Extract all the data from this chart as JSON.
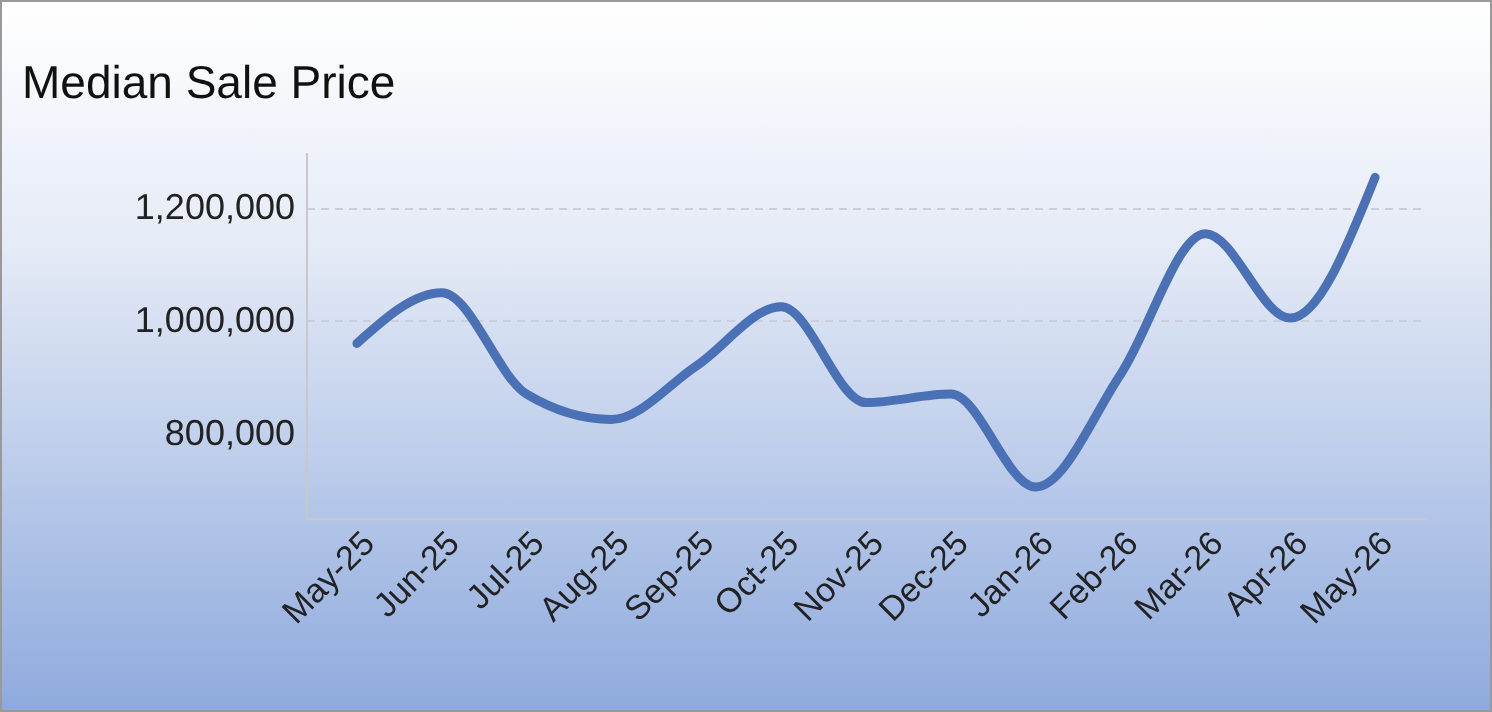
{
  "chart_data": {
    "type": "line",
    "title": "Median Sale Price",
    "categories": [
      "May-25",
      "Jun-25",
      "Jul-25",
      "Aug-25",
      "Sep-25",
      "Oct-25",
      "Nov-25",
      "Dec-25",
      "Jan-26",
      "Feb-26",
      "Mar-26",
      "Apr-26",
      "May-26"
    ],
    "series": [
      {
        "color": "#4a70b5",
        "values": [
          960000,
          1050000,
          870000,
          825000,
          920000,
          1025000,
          855000,
          870000,
          705000,
          905000,
          1155000,
          1005000,
          1255000
        ]
      }
    ],
    "ylim": [
      650000,
      1300000
    ],
    "yticks": [
      {
        "value": 800000,
        "label": "800,000"
      },
      {
        "value": 1000000,
        "label": "1,000,000"
      },
      {
        "value": 1200000,
        "label": "1,200,000"
      }
    ],
    "grid": "y",
    "line_style": "solid"
  }
}
